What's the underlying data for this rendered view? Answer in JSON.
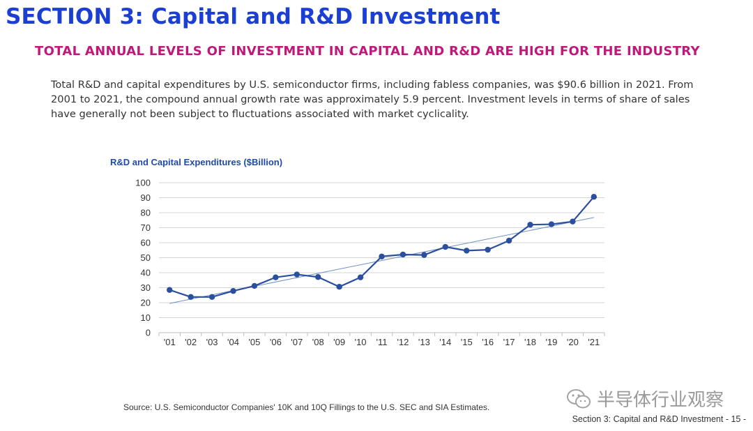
{
  "header": {
    "section_title": "SECTION 3: Capital and R&D Investment",
    "subtitle": "TOTAL ANNUAL LEVELS OF INVESTMENT IN CAPITAL AND R&D ARE HIGH FOR THE INDUSTRY"
  },
  "intro": {
    "text": "Total R&D and capital expenditures by U.S. semiconductor firms, including fabless companies, was $90.6 billion in 2021. From 2001 to 2021, the compound annual growth rate was approximately 5.9 percent. Investment levels in terms of share of sales have generally not been subject to fluctuations associated with market cyclicality."
  },
  "chart_data": {
    "type": "line",
    "title": "R&D and Capital Expenditures ($Billion)",
    "xlabel": "",
    "ylabel": "",
    "categories": [
      "'01",
      "'02",
      "'03",
      "'04",
      "'05",
      "'06",
      "'07",
      "'08",
      "'09",
      "'10",
      "'11",
      "'12",
      "'13",
      "'14",
      "'15",
      "'16",
      "'17",
      "'18",
      "'19",
      "'20",
      "'21"
    ],
    "series": [
      {
        "values": [
          28.5,
          23.8,
          23.8,
          27.8,
          31.2,
          36.9,
          38.8,
          37.1,
          30.6,
          36.9,
          50.8,
          52.1,
          51.8,
          57.2,
          54.7,
          55.3,
          61.4,
          72.0,
          72.3,
          74.1,
          90.6
        ],
        "color": "#2a4f9e"
      }
    ],
    "trendline": {
      "start": 19.5,
      "end": 76.8,
      "color": "#6f8fc6"
    },
    "ylim": [
      0,
      100
    ],
    "yticks": [
      0,
      10,
      20,
      30,
      40,
      50,
      60,
      70,
      80,
      90,
      100
    ],
    "grid": true,
    "gridline_color": "#d4d4d4",
    "legend": "none"
  },
  "source": "Source: U.S. Semiconductor Companies' 10K and 10Q Fillings to the U.S. SEC and SIA Estimates.",
  "footer": "Section 3: Capital and R&D Investment  - 15 -",
  "watermark": {
    "text": "半导体行业观察",
    "icon": "wechat-icon"
  }
}
